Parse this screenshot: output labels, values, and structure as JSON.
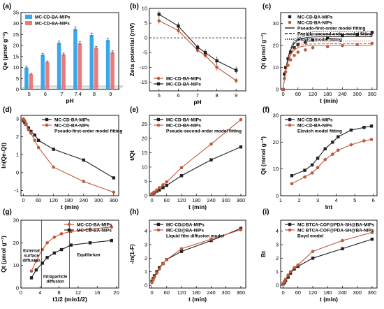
{
  "figure": {
    "panel_letters": [
      "(a)",
      "(b)",
      "(c)",
      "(d)",
      "(e)",
      "(f)",
      "(g)",
      "(h)",
      "(i)"
    ],
    "colors": {
      "mips": "#1f1f1f",
      "nips": "#c0583a",
      "bar_mips": "#3aa8e8",
      "bar_nips": "#ea7b7b"
    }
  },
  "chart_data": [
    {
      "id": "a",
      "type": "bar",
      "categories": [
        "5",
        "6",
        "7",
        "7.4",
        "8",
        "9"
      ],
      "series": [
        {
          "name": "MC-CD-BA-MIPs",
          "values": [
            10.0,
            15.8,
            21.2,
            27.5,
            24.8,
            22.5
          ],
          "errors": [
            0.6,
            0.7,
            0.8,
            1.0,
            0.9,
            0.8
          ]
        },
        {
          "name": "MC-CD-BA-NIPs",
          "values": [
            7.0,
            12.5,
            16.0,
            21.0,
            19.0,
            17.0
          ],
          "errors": [
            0.4,
            0.5,
            0.6,
            0.7,
            0.6,
            0.6
          ]
        }
      ],
      "xlabel": "pH",
      "ylabel": "Qe (μmol g⁻¹)",
      "ylim": [
        0,
        35
      ],
      "yticks": [
        "0",
        "5",
        "10",
        "15",
        "20",
        "25",
        "30",
        "35"
      ],
      "legend": "top-left"
    },
    {
      "id": "b",
      "type": "line",
      "x": [
        5,
        6,
        7,
        7.4,
        8,
        9
      ],
      "series": [
        {
          "name": "MC-CD-BA-MIPs",
          "values": [
            5.8,
            2.5,
            -4.2,
            -6.0,
            -10.0,
            -14.5
          ],
          "errors": [
            1.2,
            1.2,
            1.0,
            1.0,
            1.2,
            1.0
          ]
        },
        {
          "name": "MC-CD-BA-NIPs",
          "values": [
            8.0,
            4.0,
            -3.2,
            -5.0,
            -7.8,
            -11.0
          ],
          "errors": [
            1.2,
            1.2,
            1.0,
            1.2,
            1.5,
            1.2
          ]
        }
      ],
      "xlabel": "pH",
      "ylabel": "Zeta potential (mV)",
      "xlim": [
        4.5,
        9.5
      ],
      "ylim": [
        -18,
        10
      ],
      "xticks": [
        "5",
        "6",
        "7",
        "8",
        "9"
      ],
      "yticks": [
        "-15",
        "-10",
        "-5",
        "0",
        "5",
        "10"
      ],
      "legend": "bottom-left"
    },
    {
      "id": "c",
      "type": "scatter",
      "x": [
        0,
        5,
        10,
        20,
        30,
        45,
        60,
        90,
        120,
        180,
        240,
        300,
        360
      ],
      "series": [
        {
          "name": "MC-CD-BA-MIPs",
          "values": [
            0,
            7,
            10,
            14,
            17,
            19,
            20.5,
            21.5,
            22.5,
            23.5,
            24.5,
            25,
            26
          ]
        },
        {
          "name": "MC-CD-BA-NIPs",
          "values": [
            0,
            5,
            8,
            11,
            13.5,
            15.5,
            17,
            18,
            19,
            19.5,
            20,
            20.5,
            21
          ]
        }
      ],
      "fits": [
        "Pseudo-first-order model fitting",
        "Pseudo-second-order model fitting",
        "Elovich model fitting"
      ],
      "xlabel": "t (min)",
      "ylabel": "Qt (μmol g⁻¹)",
      "xlim": [
        -10,
        380
      ],
      "ylim": [
        0,
        35
      ],
      "xticks": [
        "0",
        "60",
        "120",
        "180",
        "240",
        "300",
        "360"
      ],
      "yticks": [
        "0",
        "10",
        "20",
        "30"
      ],
      "legend": "top-right"
    },
    {
      "id": "d",
      "type": "line",
      "x": [
        0,
        5,
        10,
        20,
        30,
        45,
        60,
        120,
        240,
        360
      ],
      "series": [
        {
          "name": "MC-CD-BA-MIPs",
          "values": [
            2.9,
            2.8,
            2.7,
            2.5,
            2.3,
            2.1,
            1.8,
            1.3,
            0.7,
            -0.3
          ]
        },
        {
          "name": "MC-CD-BA-NIPs",
          "values": [
            3.0,
            2.9,
            2.7,
            2.4,
            2.2,
            1.8,
            1.4,
            0.3,
            -0.5,
            -1.1
          ]
        }
      ],
      "fits": [
        "Pseudo-first-order model fitting"
      ],
      "xlabel": "t (min)",
      "ylabel": "ln(Qe-Qt)",
      "xlim": [
        -10,
        380
      ],
      "ylim": [
        -1.3,
        3.2
      ],
      "xticks": [
        "0",
        "60",
        "120",
        "180",
        "240",
        "300",
        "360"
      ],
      "yticks": [
        "-1",
        "0",
        "1",
        "2",
        "3"
      ],
      "legend": "top-right"
    },
    {
      "id": "e",
      "type": "line",
      "x": [
        0,
        5,
        10,
        20,
        30,
        45,
        60,
        120,
        240,
        360
      ],
      "series": [
        {
          "name": "MC-CD-BA-MIPs",
          "values": [
            0.5,
            0.8,
            1.0,
            1.6,
            2.0,
            2.8,
            3.6,
            7.0,
            12.5,
            17.0
          ]
        },
        {
          "name": "MC-CD-BA-NIPs",
          "values": [
            0.6,
            1.0,
            1.3,
            2.0,
            2.8,
            3.8,
            4.8,
            9.8,
            18.0,
            26.5
          ]
        }
      ],
      "fits": [
        "Pseudo-second-order model fitting"
      ],
      "xlabel": "t (min)",
      "ylabel": "t/Qt",
      "xlim": [
        -10,
        380
      ],
      "ylim": [
        0,
        28
      ],
      "xticks": [
        "0",
        "60",
        "120",
        "180",
        "240",
        "300",
        "360"
      ],
      "yticks": [
        "0",
        "5",
        "10",
        "15",
        "20",
        "25"
      ],
      "legend": "top-left"
    },
    {
      "id": "f",
      "type": "line",
      "x": [
        1.6,
        2.3,
        2.7,
        3.0,
        3.4,
        3.8,
        4.1,
        4.8,
        5.5,
        5.9
      ],
      "series": [
        {
          "name": "MC-CD-BA-MIPs",
          "values": [
            7.5,
            9.5,
            11.5,
            14.0,
            17.5,
            20.0,
            22.0,
            24.5,
            25.5,
            26.0
          ]
        },
        {
          "name": "MC-CD-BA-NIPs",
          "values": [
            4.5,
            7.0,
            8.5,
            10.5,
            13.5,
            15.5,
            17.0,
            19.0,
            20.5,
            21.0
          ]
        }
      ],
      "fits": [
        "Elovich model fitting"
      ],
      "xlabel": "lnt",
      "ylabel": "Qt (mmol g⁻¹)",
      "xlim": [
        1,
        6.2
      ],
      "ylim": [
        0,
        30
      ],
      "xticks": [
        "1",
        "2",
        "3",
        "4",
        "5",
        "6"
      ],
      "yticks": [
        "0",
        "10",
        "20",
        "30"
      ],
      "legend": "top-left"
    },
    {
      "id": "g",
      "type": "line",
      "x": [
        2.2,
        3.2,
        4.5,
        5.5,
        7.0,
        8.5,
        10.5,
        14.5,
        19.0
      ],
      "series": [
        {
          "name": "MC-CD-BA-MIPs",
          "values": [
            7.5,
            12.0,
            17.0,
            20.0,
            22.5,
            24.0,
            25.0,
            26.0,
            27.0
          ]
        },
        {
          "name": "MC-CD-BA-NIPs",
          "values": [
            4.5,
            8.0,
            11.0,
            13.5,
            15.5,
            17.0,
            19.0,
            20.0,
            21.0
          ]
        }
      ],
      "regions": [
        "External surface diffusion",
        "Intraparticle diffusion",
        "Equilibrium"
      ],
      "xlabel": "t1/2 (min1/2)",
      "ylabel": "Qt (μmol g⁻¹)",
      "xlim": [
        0,
        20.5
      ],
      "ylim": [
        0,
        30
      ],
      "xticks": [
        "0",
        "4",
        "8",
        "12",
        "16",
        "20"
      ],
      "yticks": [
        "0",
        "10",
        "20",
        "30"
      ],
      "legend": "top-right"
    },
    {
      "id": "h",
      "type": "line",
      "x": [
        0,
        5,
        10,
        20,
        30,
        45,
        60,
        120,
        240,
        360
      ],
      "series": [
        {
          "name": "MC-CD@BA-MIPs",
          "values": [
            0.3,
            0.5,
            0.7,
            1.0,
            1.3,
            1.6,
            1.9,
            2.5,
            3.3,
            4.2
          ]
        },
        {
          "name": "MC-CD@BA-NIPs",
          "values": [
            0.2,
            0.4,
            0.6,
            0.9,
            1.2,
            1.6,
            1.9,
            2.7,
            3.4,
            4.1
          ]
        }
      ],
      "fits": [
        "Liquid film diffusion model"
      ],
      "xlabel": "t (min)",
      "ylabel": "-ln(1-F)",
      "xlim": [
        -10,
        380
      ],
      "ylim": [
        -0.2,
        4.8
      ],
      "xticks": [
        "0",
        "60",
        "120",
        "180",
        "240",
        "300",
        "360"
      ],
      "yticks": [
        "0",
        "1",
        "2",
        "3",
        "4"
      ],
      "legend": "top-left"
    },
    {
      "id": "i",
      "type": "line",
      "x": [
        0,
        5,
        10,
        20,
        30,
        45,
        60,
        120,
        240,
        360
      ],
      "series": [
        {
          "name": "MC BTCA-COF@PDA-SH@BA-MIPs",
          "values": [
            0.1,
            0.2,
            0.35,
            0.6,
            0.9,
            1.2,
            1.4,
            2.0,
            2.7,
            3.4
          ]
        },
        {
          "name": "MC BTCA-COF@PDA-SH@BA-NIPs",
          "values": [
            0.15,
            0.3,
            0.45,
            0.75,
            1.0,
            1.3,
            1.5,
            2.5,
            3.3,
            3.9
          ]
        }
      ],
      "fits": [
        "Boyd model"
      ],
      "xlabel": "t (min)",
      "ylabel": "Bt",
      "xlim": [
        -10,
        380
      ],
      "ylim": [
        -0.2,
        4.8
      ],
      "xticks": [
        "0",
        "60",
        "120",
        "180",
        "240",
        "300",
        "360"
      ],
      "yticks": [
        "0",
        "1",
        "2",
        "3",
        "4"
      ],
      "legend": "top-left"
    }
  ]
}
